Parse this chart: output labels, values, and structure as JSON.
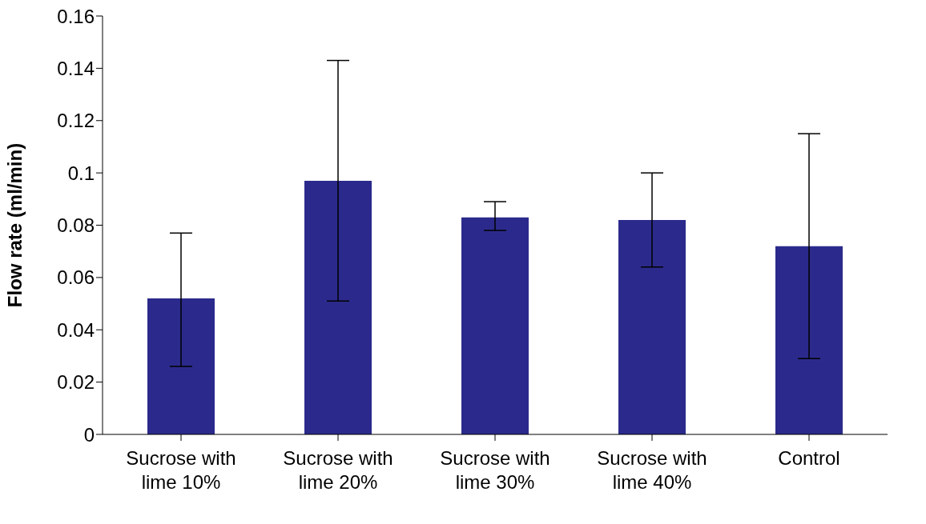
{
  "chart_data": {
    "type": "bar",
    "ylabel": "Flow rate (ml/min)",
    "categories": [
      "Sucrose with lime 10%",
      "Sucrose with lime 20%",
      "Sucrose with lime 30%",
      "Sucrose with lime 40%",
      "Control"
    ],
    "values": [
      0.052,
      0.097,
      0.083,
      0.082,
      0.072
    ],
    "errors": [
      [
        0.026,
        0.077
      ],
      [
        0.051,
        0.143
      ],
      [
        0.078,
        0.089
      ],
      [
        0.064,
        0.1
      ],
      [
        0.029,
        0.115
      ]
    ],
    "color": "#2b2a8c",
    "ylim": [
      0,
      0.16
    ],
    "yticks": [
      0,
      0.02,
      0.04,
      0.06,
      0.08,
      0.1,
      0.12,
      0.14,
      0.16
    ],
    "grid": false,
    "legend": false
  }
}
